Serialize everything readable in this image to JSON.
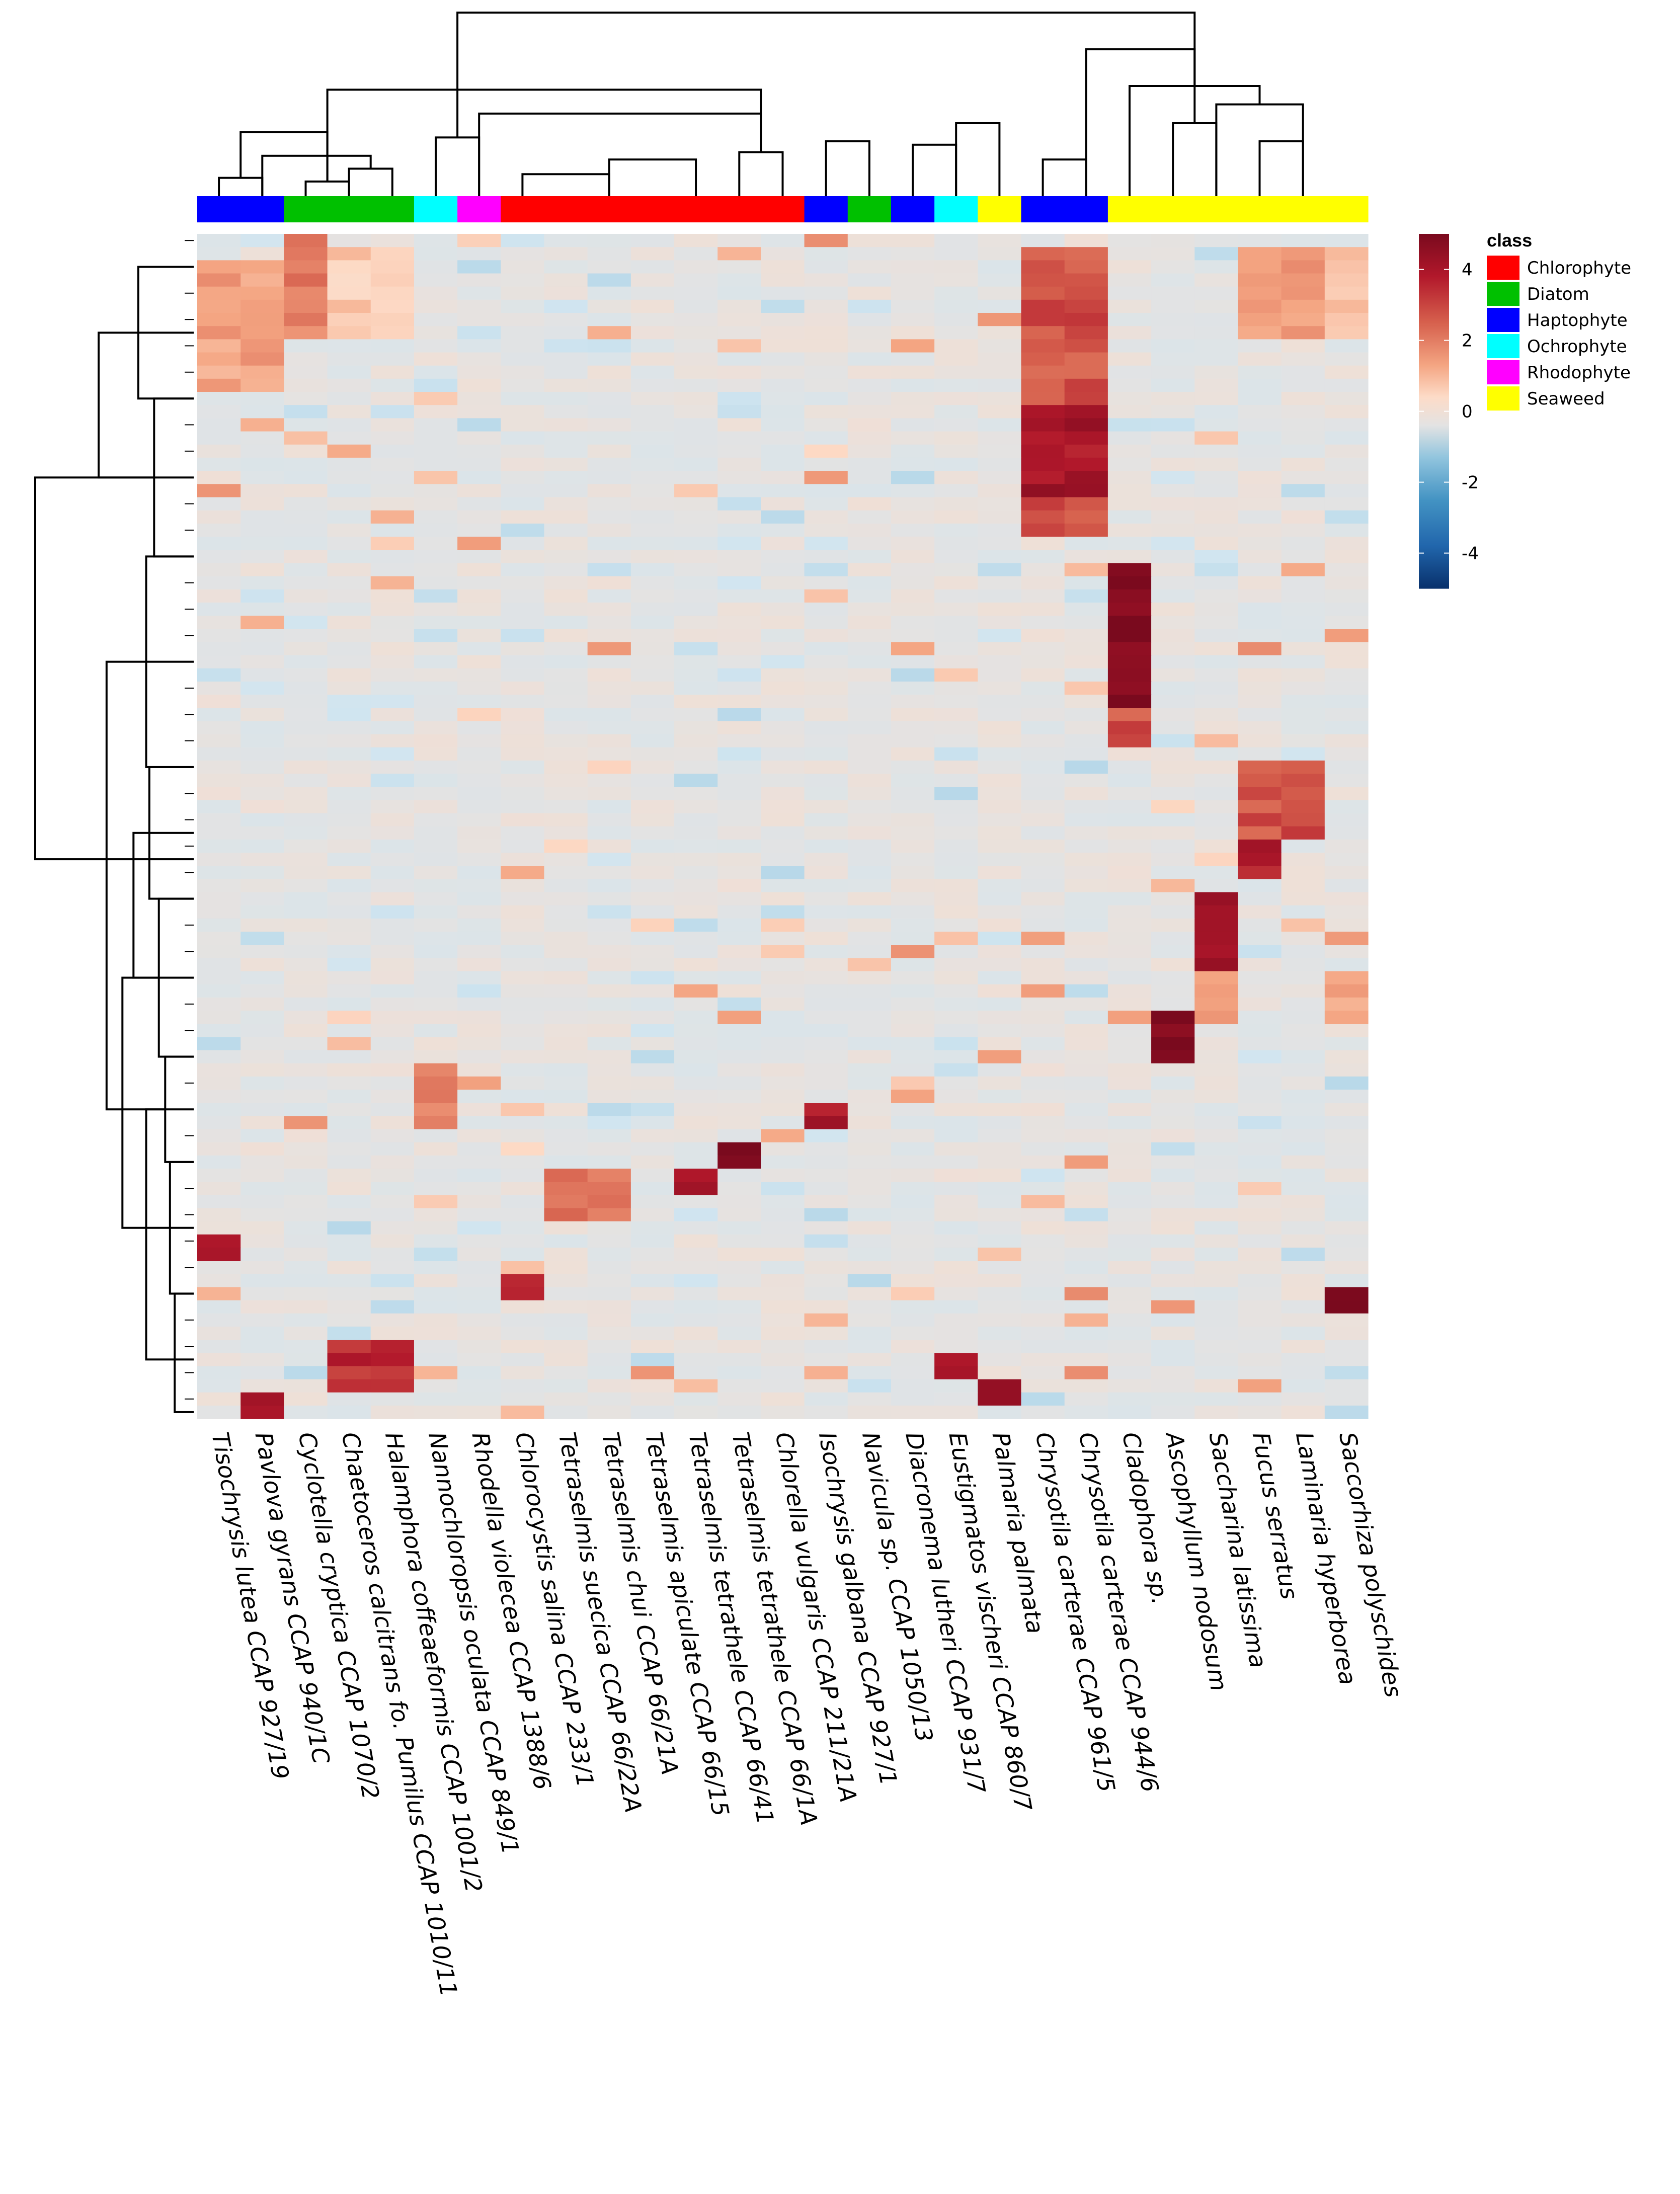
{
  "chart_data": {
    "type": "heatmap",
    "title": "",
    "xlabel": "",
    "ylabel": "",
    "columns": [
      "Tisochrysis lutea CCAP 927/19",
      "Pavlova gyrans CCAP 940/1C",
      "Cyclotella cryptica CCAP 1070/2",
      "Chaetoceros calcitrans fo. Pumilus CCAP 1010/11",
      "Halamphora coffeaeformis CCAP 1001/2",
      "Nannochloropsis oculata CCAP 849/1",
      "Rhodella violecea CCAP 1388/6",
      "Chlorocystis salina CCAP 233/1",
      "Tetraselmis suecica CCAP 66/22A",
      "Tetraselmis chui CCAP 66/21A",
      "Tetraselmis apiculate CCAP 66/15",
      "Tetraselmis tetrathele CCAP 66/41",
      "Tetraselmis tetrathele CCAP 66/1A",
      "Chlorella vulgaris CCAP 211/21A",
      "Isochrysis galbana CCAP 927/1",
      "Navicula sp. CCAP 1050/13",
      "Diacronema lutheri CCAP 931/7",
      "Eustigmatos vischeri CCAP 860/7",
      "Palmaria palmata",
      "Chrysotila carterae CCAP 961/5",
      "Chrysotila carterae CCAP 944/6",
      "Cladophora sp.",
      "Ascophyllum nodosum",
      "Saccharina latissima",
      "Fucus serratus",
      "Laminaria hyperborea",
      "Saccorhiza polyschides"
    ],
    "column_classes": [
      "Haptophyte",
      "Haptophyte",
      "Diatom",
      "Diatom",
      "Diatom",
      "Ochrophyte",
      "Rhodophyte",
      "Chlorophyte",
      "Chlorophyte",
      "Chlorophyte",
      "Chlorophyte",
      "Chlorophyte",
      "Chlorophyte",
      "Chlorophyte",
      "Haptophyte",
      "Diatom",
      "Haptophyte",
      "Ochrophyte",
      "Seaweed",
      "Haptophyte",
      "Haptophyte",
      "Seaweed",
      "Seaweed",
      "Seaweed",
      "Seaweed",
      "Seaweed",
      "Seaweed"
    ],
    "row_count": 90,
    "color_range": [
      -5,
      5
    ],
    "color_stops": [
      "#08306b",
      "#2166ac",
      "#4393c3",
      "#92c5de",
      "#d1e5f0",
      "#e3e3e3",
      "#fddbc7",
      "#f4a582",
      "#d6604d",
      "#b2182b",
      "#7a0a1e"
    ],
    "legend": {
      "title": "class",
      "entries": [
        {
          "label": "Chlorophyte",
          "color": "#ff0000"
        },
        {
          "label": "Diatom",
          "color": "#00c000"
        },
        {
          "label": "Haptophyte",
          "color": "#0000ff"
        },
        {
          "label": "Ochrophyte",
          "color": "#00ffff"
        },
        {
          "label": "Rhodophyte",
          "color": "#ff00ff"
        },
        {
          "label": "Seaweed",
          "color": "#ffff00"
        }
      ]
    },
    "colorbar_ticks": [
      "4",
      "2",
      "0",
      "-2",
      "-4"
    ],
    "colorbar_tick_values": [
      4,
      2,
      0,
      -2,
      -4
    ],
    "blocks": [
      {
        "cols": [
          0,
          1
        ],
        "rows": [
          2,
          12
        ],
        "value": 2.0
      },
      {
        "cols": [
          2
        ],
        "rows": [
          0,
          8
        ],
        "value": 2.5
      },
      {
        "cols": [
          3,
          4
        ],
        "rows": [
          1,
          8
        ],
        "value": 1.3
      },
      {
        "cols": [
          19,
          20
        ],
        "rows": [
          1,
          23
        ],
        "value": 3.2
      },
      {
        "cols": [
          19,
          20
        ],
        "rows": [
          13,
          20
        ],
        "value": 4.2
      },
      {
        "cols": [
          21
        ],
        "rows": [
          25,
          36
        ],
        "value": 5.0
      },
      {
        "cols": [
          21
        ],
        "rows": [
          36,
          39
        ],
        "value": 3.2
      },
      {
        "cols": [
          24,
          25
        ],
        "rows": [
          1,
          8
        ],
        "value": 2.0
      },
      {
        "cols": [
          26
        ],
        "rows": [
          1,
          8
        ],
        "value": 1.5
      },
      {
        "cols": [
          24,
          25
        ],
        "rows": [
          40,
          46
        ],
        "value": 3.2
      },
      {
        "cols": [
          24
        ],
        "rows": [
          46,
          49
        ],
        "value": 4.0
      },
      {
        "cols": [
          23
        ],
        "rows": [
          50,
          57
        ],
        "value": 4.5
      },
      {
        "cols": [
          22
        ],
        "rows": [
          59,
          63
        ],
        "value": 5.0
      },
      {
        "cols": [
          23,
          26
        ],
        "rows": [
          56,
          60
        ],
        "value": 2.0
      },
      {
        "cols": [
          5
        ],
        "rows": [
          63,
          68
        ],
        "value": 2.4
      },
      {
        "cols": [
          12
        ],
        "rows": [
          69,
          71
        ],
        "value": 5.0
      },
      {
        "cols": [
          0
        ],
        "rows": [
          76,
          78
        ],
        "value": 4.2
      },
      {
        "cols": [
          7
        ],
        "rows": [
          79,
          81
        ],
        "value": 3.5
      },
      {
        "cols": [
          8,
          9
        ],
        "rows": [
          71,
          75
        ],
        "value": 2.6
      },
      {
        "cols": [
          11
        ],
        "rows": [
          71,
          73
        ],
        "value": 4.0
      },
      {
        "cols": [
          3,
          4
        ],
        "rows": [
          84,
          88
        ],
        "value": 3.8
      },
      {
        "cols": [
          26
        ],
        "rows": [
          80,
          82
        ],
        "value": 5.0
      },
      {
        "cols": [
          18
        ],
        "rows": [
          87,
          89
        ],
        "value": 4.5
      },
      {
        "cols": [
          17
        ],
        "rows": [
          85,
          87
        ],
        "value": 4.0
      },
      {
        "cols": [
          1
        ],
        "rows": [
          88,
          90
        ],
        "value": 4.5
      },
      {
        "cols": [
          14
        ],
        "rows": [
          66,
          68
        ],
        "value": 4.0
      }
    ],
    "col_dendrogram": [
      {
        "l": 0,
        "r": 1,
        "h": 0.1
      },
      {
        "l": 2,
        "r": 3,
        "h": 0.08
      },
      {
        "l": 3,
        "r": 4,
        "h": 0.15
      },
      {
        "l": 1,
        "r": 3,
        "h": 0.22
      },
      {
        "l": 0,
        "r": 2,
        "h": 0.35
      },
      {
        "l": 5,
        "r": 6,
        "h": 0.32
      },
      {
        "l": 7,
        "r": 9,
        "h": 0.12
      },
      {
        "l": 9,
        "r": 11,
        "h": 0.2
      },
      {
        "l": 12,
        "r": 13,
        "h": 0.24
      },
      {
        "l": 14,
        "r": 15,
        "h": 0.3
      },
      {
        "l": 16,
        "r": 17,
        "h": 0.28
      },
      {
        "l": 17,
        "r": 18,
        "h": 0.4
      },
      {
        "l": 6,
        "r": 12,
        "h": 0.45
      },
      {
        "l": 2,
        "r": 12,
        "h": 0.58
      },
      {
        "l": 19,
        "r": 20,
        "h": 0.2
      },
      {
        "l": 22,
        "r": 23,
        "h": 0.4
      },
      {
        "l": 24,
        "r": 25,
        "h": 0.3
      },
      {
        "l": 23,
        "r": 25,
        "h": 0.5
      },
      {
        "l": 21,
        "r": 23,
        "h": 0.6
      },
      {
        "l": 20,
        "r": 22,
        "h": 0.8
      },
      {
        "l": 5,
        "r": 21,
        "h": 1.0
      }
    ],
    "row_dendrogram": [
      {
        "t": 2,
        "b": 12,
        "h": 0.35
      },
      {
        "t": 12,
        "b": 24,
        "h": 0.25
      },
      {
        "t": 7,
        "b": 18,
        "h": 0.6
      },
      {
        "t": 24,
        "b": 40,
        "h": 0.3
      },
      {
        "t": 40,
        "b": 50,
        "h": 0.28
      },
      {
        "t": 50,
        "b": 62,
        "h": 0.22
      },
      {
        "t": 62,
        "b": 70,
        "h": 0.18
      },
      {
        "t": 70,
        "b": 80,
        "h": 0.15
      },
      {
        "t": 80,
        "b": 90,
        "h": 0.12
      },
      {
        "t": 45,
        "b": 56,
        "h": 0.38
      },
      {
        "t": 66,
        "b": 85,
        "h": 0.3
      },
      {
        "t": 50,
        "b": 75,
        "h": 0.45
      },
      {
        "t": 32,
        "b": 62,
        "h": 0.55
      },
      {
        "t": 12,
        "b": 47,
        "h": 1.0
      }
    ]
  }
}
